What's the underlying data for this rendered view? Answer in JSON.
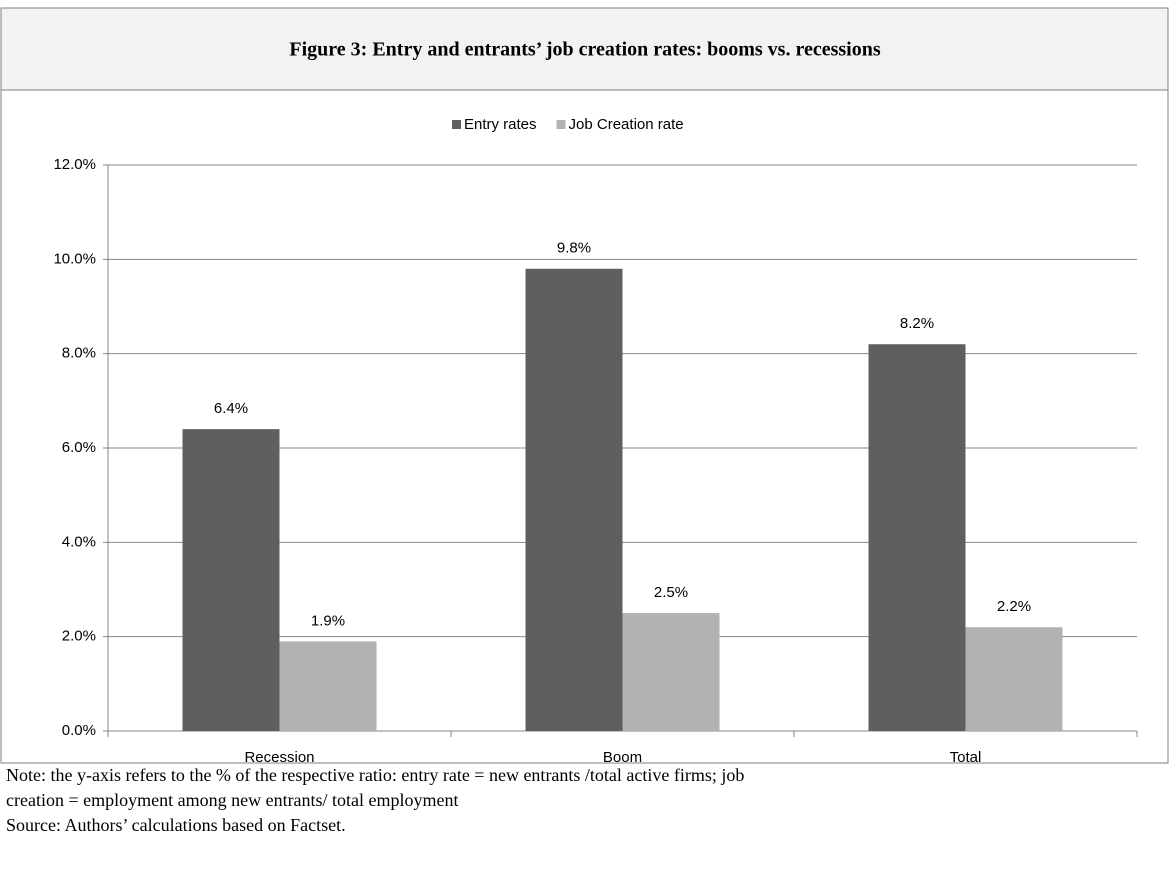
{
  "chart_data": {
    "type": "bar",
    "title": "Figure 3: Entry and entrants’ job creation rates: booms vs. recessions",
    "categories": [
      "Recession",
      "Boom",
      "Total"
    ],
    "series": [
      {
        "name": "Entry rates",
        "color": "#5f5f5f",
        "values": [
          6.4,
          9.8,
          8.2
        ],
        "value_labels": [
          "6.4%",
          "9.8%",
          "8.2%"
        ]
      },
      {
        "name": "Job Creation rate",
        "color": "#b2b2b2",
        "values": [
          1.9,
          2.5,
          2.2
        ],
        "value_labels": [
          "1.9%",
          "2.5%",
          "2.2%"
        ]
      }
    ],
    "ylim": [
      0,
      12
    ],
    "yticks": [
      {
        "value": 0,
        "label": "0.0%"
      },
      {
        "value": 2,
        "label": "2.0%"
      },
      {
        "value": 4,
        "label": "4.0%"
      },
      {
        "value": 6,
        "label": "6.0%"
      },
      {
        "value": 8,
        "label": "8.0%"
      },
      {
        "value": 10,
        "label": "10.0%"
      },
      {
        "value": 12,
        "label": "12.0%"
      }
    ],
    "grid": true,
    "legend": "top",
    "note": "Note: the y-axis refers to the % of the respective ratio: entry rate = new entrants /total active firms; job creation = employment among new entrants/ total employment",
    "source": "Source: Authors’ calculations based on Factset."
  }
}
